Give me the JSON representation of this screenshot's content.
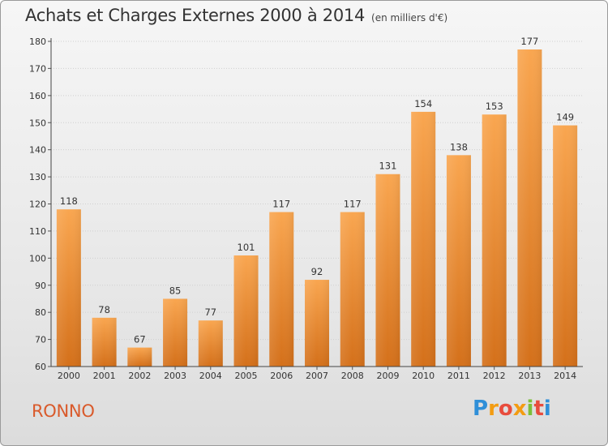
{
  "title": "Achats et Charges Externes 2000 à 2014",
  "subtitle": "(en milliers d'€)",
  "footer": {
    "commune": "RONNO",
    "brand": "Proxiti"
  },
  "colors": {
    "bar_light": "#f7a44e",
    "bar_dark": "#d8741c",
    "axis": "#444444",
    "grid": "#d0d0d0",
    "commune": "#d95a2b"
  },
  "chart_data": {
    "type": "bar",
    "title": "Achats et Charges Externes 2000 à 2014",
    "subtitle": "(en milliers d'€)",
    "categories": [
      "2000",
      "2001",
      "2002",
      "2003",
      "2004",
      "2005",
      "2006",
      "2007",
      "2008",
      "2009",
      "2010",
      "2011",
      "2012",
      "2013",
      "2014"
    ],
    "values": [
      118,
      78,
      67,
      85,
      77,
      101,
      117,
      92,
      117,
      131,
      154,
      138,
      153,
      177,
      149
    ],
    "ylim": [
      60,
      180
    ],
    "yticks": [
      60,
      70,
      80,
      90,
      100,
      110,
      120,
      130,
      140,
      150,
      160,
      170,
      180
    ],
    "grid": true,
    "data_labels": true
  }
}
